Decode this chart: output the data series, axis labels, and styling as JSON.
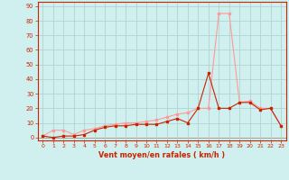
{
  "x": [
    0,
    1,
    2,
    3,
    4,
    5,
    6,
    7,
    8,
    9,
    10,
    11,
    12,
    13,
    14,
    15,
    16,
    17,
    18,
    19,
    20,
    21,
    22,
    23
  ],
  "y_wind": [
    1,
    0,
    1,
    1,
    2,
    5,
    7,
    8,
    8,
    9,
    9,
    9,
    11,
    13,
    10,
    20,
    44,
    20,
    20,
    24,
    24,
    19,
    20,
    8
  ],
  "y_gusts": [
    1,
    5,
    5,
    2,
    5,
    6,
    8,
    9,
    10,
    10,
    11,
    12,
    14,
    16,
    17,
    20,
    20,
    85,
    85,
    24,
    25,
    20,
    20,
    8
  ],
  "wind_color": "#cc2200",
  "gusts_color": "#ff9999",
  "bg_color": "#cff0ee",
  "grid_color": "#aacece",
  "axis_color": "#cc2200",
  "spine_color": "#888888",
  "xlabel": "Vent moyen/en rafales ( km/h )",
  "ytick_labels": [
    "0",
    "10",
    "20",
    "30",
    "40",
    "50",
    "60",
    "70",
    "80",
    "90"
  ],
  "ytick_vals": [
    0,
    10,
    20,
    30,
    40,
    50,
    60,
    70,
    80,
    90
  ],
  "xtick_labels": [
    "0",
    "1",
    "2",
    "3",
    "4",
    "5",
    "6",
    "7",
    "8",
    "9",
    "10",
    "11",
    "12",
    "13",
    "14",
    "15",
    "16",
    "17",
    "18",
    "19",
    "20",
    "21",
    "22",
    "23"
  ],
  "xtick_vals": [
    0,
    1,
    2,
    3,
    4,
    5,
    6,
    7,
    8,
    9,
    10,
    11,
    12,
    13,
    14,
    15,
    16,
    17,
    18,
    19,
    20,
    21,
    22,
    23
  ],
  "ylim": [
    -2,
    93
  ],
  "xlim": [
    -0.5,
    23.5
  ]
}
